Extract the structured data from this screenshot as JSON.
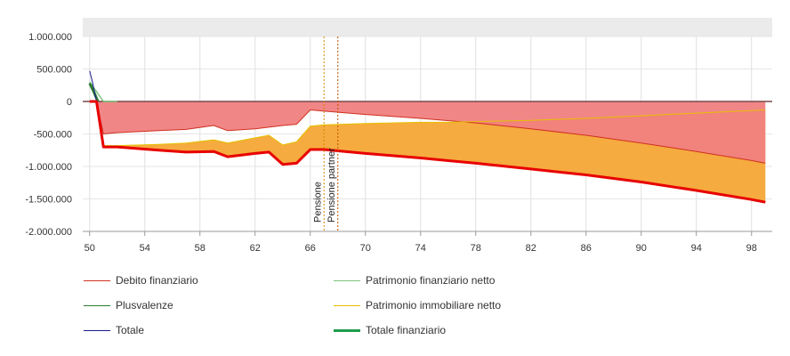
{
  "chart_data": {
    "type": "area",
    "title": "",
    "xlabel": "",
    "ylabel": "",
    "xlim": [
      49.5,
      99.5
    ],
    "ylim": [
      -2000000,
      1000000
    ],
    "x_ticks": [
      50,
      54,
      58,
      62,
      66,
      70,
      74,
      78,
      82,
      86,
      90,
      94,
      98
    ],
    "x_tick_labels": [
      "50",
      "54",
      "58",
      "62",
      "66",
      "70",
      "74",
      "78",
      "82",
      "86",
      "90",
      "94",
      "98"
    ],
    "y_ticks": [
      1000000,
      500000,
      0,
      -500000,
      -1000000,
      -1500000,
      -2000000
    ],
    "y_tick_labels": [
      "1.000.000",
      "500.000",
      "0",
      "-500.000",
      "-1.000.000",
      "-1.500.000",
      "-2.000.000"
    ],
    "grid": true,
    "legend_position": "bottom",
    "annotations": [
      {
        "label": "Pensione",
        "x": 67,
        "color": "#d08a00"
      },
      {
        "label": "Pensione partner",
        "x": 68,
        "color": "#c05000"
      }
    ],
    "series": [
      {
        "name": "Debito finanziario",
        "color": "#d03020",
        "fill": "#f08080",
        "x": [
          50,
          50.5,
          51,
          52,
          55,
          57,
          59,
          60,
          62,
          64,
          65,
          66,
          67,
          70,
          74,
          78,
          82,
          86,
          90,
          94,
          98,
          99
        ],
        "values": [
          0,
          0,
          -500000,
          -480000,
          -450000,
          -430000,
          -370000,
          -450000,
          -420000,
          -370000,
          -350000,
          -130000,
          -150000,
          -200000,
          -260000,
          -330000,
          -420000,
          -520000,
          -640000,
          -770000,
          -910000,
          -950000
        ]
      },
      {
        "name": "Patrimonio finanziario netto",
        "color": "#7cc47c",
        "x": [
          50,
          50.5,
          51,
          51.5,
          52
        ],
        "values": [
          300000,
          150000,
          0,
          0,
          0
        ]
      },
      {
        "name": "Plusvalenze",
        "color": "#2e7d32",
        "x": [
          50,
          50.3,
          50.6
        ],
        "values": [
          280000,
          150000,
          0
        ]
      },
      {
        "name": "Patrimonio immobiliare netto",
        "color": "#e6c000",
        "fill": "#f5ab3f",
        "x": [
          50,
          50.5,
          51,
          52,
          55,
          57,
          59,
          60,
          62,
          63,
          64,
          65,
          66,
          67,
          70,
          74,
          76,
          78,
          82,
          86,
          90,
          94,
          98,
          99
        ],
        "values": [
          0,
          0,
          -680000,
          -680000,
          -660000,
          -640000,
          -590000,
          -640000,
          -560000,
          -520000,
          -670000,
          -620000,
          -380000,
          -360000,
          -340000,
          -320000,
          -320000,
          -310000,
          -290000,
          -260000,
          -220000,
          -180000,
          -140000,
          -130000
        ]
      },
      {
        "name": "Totale",
        "color": "#1a1a8c",
        "x": [
          50,
          50.2,
          50.5
        ],
        "values": [
          470000,
          300000,
          0
        ]
      },
      {
        "name": "Totale finanziario",
        "color": "#e80000",
        "x": [
          50,
          50.5,
          51,
          52,
          55,
          57,
          59,
          60,
          62,
          63,
          64,
          65,
          66,
          67,
          68,
          70,
          74,
          78,
          82,
          86,
          90,
          94,
          98,
          99
        ],
        "values": [
          0,
          0,
          -700000,
          -700000,
          -750000,
          -780000,
          -770000,
          -850000,
          -800000,
          -780000,
          -970000,
          -950000,
          -740000,
          -740000,
          -760000,
          -800000,
          -870000,
          -950000,
          -1040000,
          -1130000,
          -1240000,
          -1370000,
          -1510000,
          -1550000
        ]
      }
    ]
  },
  "legend": {
    "items": [
      {
        "label": "Debito finanziario",
        "color": "#d03020"
      },
      {
        "label": "Patrimonio finanziario netto",
        "color": "#7cc47c"
      },
      {
        "label": "Plusvalenze",
        "color": "#2e7d32"
      },
      {
        "label": "Patrimonio immobiliare netto",
        "color": "#e6c000"
      },
      {
        "label": "Totale",
        "color": "#1a1a8c"
      },
      {
        "label": "Totale finanziario",
        "color": "#1f9d4c"
      }
    ]
  }
}
